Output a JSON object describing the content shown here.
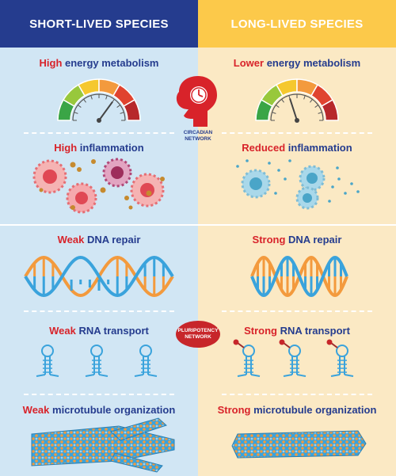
{
  "headers": {
    "left": "SHORT-LIVED SPECIES",
    "right": "LONG-LIVED SPECIES"
  },
  "left": {
    "metabolism": {
      "key": "High",
      "rest": " energy metabolism",
      "gauge_level": 0.7
    },
    "inflammation": {
      "key": "High",
      "rest": " inflammation"
    },
    "dna": {
      "key": "Weak",
      "rest": " DNA repair"
    },
    "rna": {
      "key": "Weak",
      "rest": " RNA transport"
    },
    "microtubule": {
      "key": "Weak",
      "rest": " microtubule organization"
    }
  },
  "right": {
    "metabolism": {
      "key": "Lower",
      "rest": " energy metabolism",
      "gauge_level": 0.4
    },
    "inflammation": {
      "key": "Reduced",
      "rest": " inflammation"
    },
    "dna": {
      "key": "Strong",
      "rest": " DNA repair"
    },
    "rna": {
      "key": "Strong",
      "rest": " RNA transport"
    },
    "microtubule": {
      "key": "Strong",
      "rest": " microtubule organization"
    }
  },
  "center": {
    "circadian": {
      "line1": "CIRCADIAN",
      "line2": "NETWORK",
      "icon": "head-clock-icon"
    },
    "pluripotency": {
      "line1": "PLURIPOTENCY",
      "line2": "NETWORK"
    }
  },
  "colors": {
    "navy": "#253c8e",
    "red": "#d8232a",
    "left_bg": "#d1e6f4",
    "right_bg": "#fbe9c4",
    "gold": "#fcc94a",
    "orange": "#f39a3d",
    "blue": "#3aa3dc",
    "gauge": [
      "#3aa546",
      "#98c83c",
      "#f5c82e",
      "#f39a3d",
      "#e0432f",
      "#b7282b"
    ]
  }
}
